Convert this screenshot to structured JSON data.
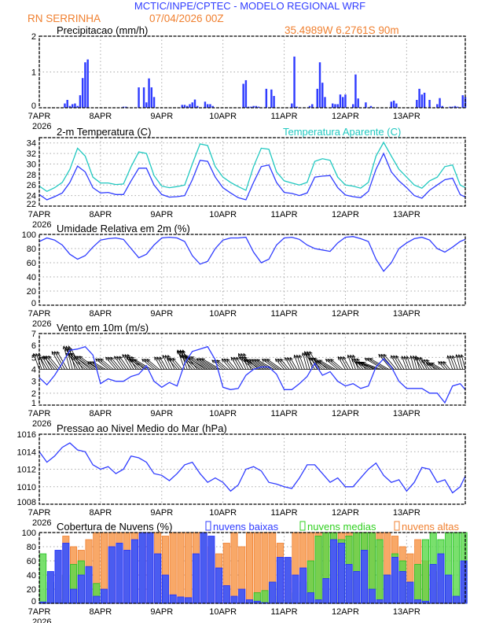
{
  "header": {
    "title": "MCTIC/INPE/CPTEC - MODELO REGIONAL WRF",
    "location": "RN SERRINHA",
    "run": "07/04/2026 00Z",
    "coords": "35.4989W 6.2761S 90m"
  },
  "colors": {
    "title": "#2f3cff",
    "orange": "#f08030",
    "blue": "#2f3cff",
    "cyan": "#20c8c0",
    "green": "#30d020",
    "orange_fill": "#f8a868"
  },
  "x_axis": {
    "labels": [
      "7APR",
      "8APR",
      "9APR",
      "10APR",
      "11APR",
      "12APR",
      "13APR"
    ],
    "year": "2026",
    "hours_total": 167
  },
  "chart_data": [
    {
      "id": "precip",
      "type": "bar",
      "title": "Precipitacao (mm/h)",
      "ylim": [
        0,
        2
      ],
      "yticks": [
        0,
        1,
        2
      ],
      "bars": [
        [
          10,
          0.12
        ],
        [
          11,
          0.22
        ],
        [
          12,
          0.05
        ],
        [
          13,
          0.1
        ],
        [
          14,
          0.12
        ],
        [
          15,
          0.05
        ],
        [
          16,
          0.35
        ],
        [
          17,
          0.83
        ],
        [
          18,
          1.27
        ],
        [
          19,
          1.35
        ],
        [
          33,
          0.03
        ],
        [
          34,
          0.03
        ],
        [
          39,
          0.57
        ],
        [
          41,
          0.57
        ],
        [
          42,
          0.15
        ],
        [
          43,
          0.82
        ],
        [
          44,
          0.57
        ],
        [
          45,
          0.3
        ],
        [
          56,
          0.08
        ],
        [
          57,
          0.08
        ],
        [
          58,
          0.05
        ],
        [
          59,
          0.1
        ],
        [
          60,
          0.15
        ],
        [
          61,
          0.23
        ],
        [
          62,
          0.05
        ],
        [
          65,
          0.17
        ],
        [
          66,
          0.1
        ],
        [
          67,
          0.1
        ],
        [
          68,
          0.05
        ],
        [
          80,
          0.67
        ],
        [
          81,
          0.77
        ],
        [
          82,
          0.03
        ],
        [
          83,
          0.03
        ],
        [
          84,
          0.05
        ],
        [
          85,
          0.05
        ],
        [
          86,
          0.03
        ],
        [
          89,
          0.53
        ],
        [
          91,
          0.51
        ],
        [
          92,
          0.33
        ],
        [
          99,
          0.12
        ],
        [
          100,
          1.43
        ],
        [
          101,
          0.03
        ],
        [
          106,
          0.05
        ],
        [
          107,
          0.1
        ],
        [
          109,
          0.53
        ],
        [
          110,
          1.27
        ],
        [
          111,
          0.7
        ],
        [
          112,
          0.3
        ],
        [
          115,
          0.12
        ],
        [
          116,
          0.1
        ],
        [
          117,
          0.1
        ],
        [
          118,
          0.37
        ],
        [
          119,
          0.3
        ],
        [
          120,
          0.37
        ],
        [
          123,
          0.1
        ],
        [
          124,
          0.93
        ],
        [
          125,
          0.26
        ],
        [
          128,
          0.15
        ],
        [
          130,
          0.05
        ],
        [
          138,
          0.17
        ],
        [
          139,
          0.2
        ],
        [
          140,
          0.12
        ],
        [
          148,
          0.22
        ],
        [
          149,
          0.53
        ],
        [
          150,
          0.37
        ],
        [
          151,
          0.42
        ],
        [
          153,
          0.22
        ],
        [
          156,
          0.1
        ],
        [
          157,
          0.27
        ],
        [
          158,
          0.05
        ],
        [
          161,
          0.03
        ],
        [
          162,
          0.03
        ],
        [
          163,
          0.05
        ],
        [
          164,
          0.03
        ],
        [
          166,
          0.35
        ],
        [
          167,
          0.3
        ]
      ]
    },
    {
      "id": "temp",
      "type": "line",
      "title": "2-m Temperatura (C)",
      "legend2": "Temperatura Aparente (C)",
      "ylim": [
        22,
        35
      ],
      "yticks": [
        22,
        24,
        26,
        28,
        30,
        32,
        34
      ],
      "hours": [
        0,
        3,
        6,
        9,
        12,
        15,
        18,
        21,
        24,
        27,
        30,
        33,
        36,
        39,
        42,
        45,
        48,
        51,
        54,
        57,
        60,
        63,
        66,
        69,
        72,
        75,
        78,
        81,
        84,
        87,
        90,
        93,
        96,
        99,
        102,
        105,
        108,
        111,
        114,
        117,
        120,
        123,
        126,
        129,
        132,
        135,
        138,
        141,
        144,
        147,
        150,
        153,
        156,
        159,
        162,
        165,
        167
      ],
      "series": [
        {
          "name": "2-m Temperatura (C)",
          "values": [
            24.2,
            23.2,
            23.8,
            24.5,
            26.5,
            29.6,
            28.5,
            25.5,
            24.5,
            24.6,
            24.2,
            24.2,
            26.8,
            29.2,
            29.2,
            26,
            24.2,
            23.7,
            23.8,
            24,
            27,
            30.7,
            30.5,
            27.5,
            25.5,
            24.5,
            23.6,
            23.2,
            26.5,
            29.5,
            29.8,
            26.5,
            24.6,
            24.4,
            24,
            24.5,
            27.5,
            27.7,
            27.8,
            25.5,
            24.1,
            23.8,
            23.6,
            24.8,
            29,
            32,
            28.5,
            26.8,
            25.5,
            24,
            23.5,
            25,
            26,
            27,
            27.3,
            24.2,
            23.7
          ]
        },
        {
          "name": "Temperatura Aparente (C)",
          "values": [
            25.8,
            24.8,
            25.5,
            26.5,
            29,
            33,
            31.5,
            27.5,
            26.4,
            26.4,
            26.1,
            26.2,
            29.5,
            32.3,
            32,
            27.8,
            25.8,
            25.5,
            25.7,
            26,
            30,
            33.8,
            33.5,
            29.5,
            27.5,
            26.5,
            25.7,
            25,
            29.5,
            33,
            32.8,
            28.5,
            26.8,
            26.4,
            26,
            26.5,
            30.5,
            31,
            30.7,
            27.5,
            26,
            25.8,
            25.4,
            26.5,
            31.5,
            34.1,
            31.5,
            29,
            27.5,
            26,
            25.4,
            26.8,
            27.5,
            29.5,
            29.8,
            26,
            25.5
          ]
        }
      ]
    },
    {
      "id": "rh",
      "type": "line",
      "title": "Umidade Relativa em 2m (%)",
      "ylim": [
        0,
        100
      ],
      "yticks": [
        0,
        20,
        40,
        60,
        80,
        100
      ],
      "series": [
        {
          "name": "Umidade Relativa",
          "values": [
            90,
            95,
            92,
            85,
            72,
            65,
            70,
            82,
            92,
            94,
            95,
            93,
            80,
            67,
            72,
            85,
            95,
            96,
            95,
            90,
            70,
            58,
            62,
            80,
            92,
            95,
            95,
            96,
            75,
            60,
            65,
            85,
            95,
            96,
            93,
            85,
            80,
            78,
            76,
            88,
            96,
            97,
            94,
            90,
            65,
            48,
            60,
            80,
            88,
            94,
            96,
            92,
            80,
            75,
            82,
            90,
            93
          ]
        }
      ]
    },
    {
      "id": "wind",
      "type": "line",
      "title": "Vento em 10m (m/s)",
      "ylim": [
        1,
        7
      ],
      "yticks": [
        1,
        2,
        3,
        4,
        5,
        6,
        7
      ],
      "series": [
        {
          "name": "Velocidade",
          "values": [
            3.3,
            2.7,
            3.5,
            4.5,
            5.6,
            5.7,
            5.9,
            5.2,
            2.8,
            3.2,
            3.0,
            3.0,
            3.4,
            3.6,
            4.3,
            3.0,
            2.5,
            2.9,
            2.6,
            4.5,
            5.5,
            5.7,
            5.9,
            4.8,
            2.5,
            2.3,
            2.4,
            3.5,
            4.0,
            4.2,
            4.2,
            3.6,
            2.3,
            2.3,
            2.8,
            3.4,
            4.5,
            3.5,
            3.8,
            3.0,
            2.6,
            2.8,
            2.4,
            2.6,
            4.2,
            4.9,
            4.2,
            3.0,
            2.4,
            2.4,
            2.4,
            2.0,
            2.0,
            1.2,
            2.6,
            2.8,
            2.3
          ]
        }
      ],
      "arrow_direction_deg": [
        340,
        330,
        320,
        330,
        345,
        330,
        310,
        305,
        300,
        310,
        320,
        325,
        330,
        315,
        300,
        310,
        330,
        335,
        320,
        340,
        320,
        305,
        300,
        300,
        310,
        320,
        330,
        335,
        310,
        300,
        300,
        305,
        320,
        330,
        340,
        345,
        330,
        310,
        300,
        310,
        330,
        340,
        320,
        300,
        290,
        300,
        320,
        330,
        340,
        345,
        330,
        320,
        300,
        320,
        340,
        345
      ],
      "arrow_baseline": 4
    },
    {
      "id": "pres",
      "type": "line",
      "title": "Pressao ao Nivel Medio do Mar (hPa)",
      "ylim": [
        1008,
        1016
      ],
      "yticks": [
        1008,
        1010,
        1012,
        1014,
        1016
      ],
      "series": [
        {
          "name": "Pressao",
          "values": [
            1014,
            1012.8,
            1013.5,
            1014.5,
            1015,
            1014.2,
            1014,
            1012.5,
            1012,
            1012.3,
            1011.5,
            1012,
            1013.5,
            1013.3,
            1012.8,
            1011.5,
            1011.3,
            1010.7,
            1011.5,
            1012.5,
            1012.8,
            1011.5,
            1010.5,
            1011,
            1010.5,
            1009.5,
            1010.2,
            1012,
            1012.3,
            1011.8,
            1010.5,
            1010.3,
            1010,
            1009.8,
            1011,
            1012.5,
            1012.5,
            1011.5,
            1010.5,
            1011,
            1010,
            1010,
            1011,
            1012,
            1012.7,
            1011.3,
            1010.5,
            1010.8,
            1009.5,
            1010.5,
            1012.2,
            1012,
            1010.5,
            1010.8,
            1009.3,
            1010,
            1011.2
          ]
        }
      ]
    },
    {
      "id": "cloud",
      "type": "bar",
      "title": "Cobertura de Nuvens (%)",
      "ylim": [
        0,
        100
      ],
      "yticks": [
        0,
        20,
        40,
        60,
        80,
        100
      ],
      "step_hours": 3,
      "series": [
        {
          "name": "nuvens altas",
          "values": [
            0,
            0,
            40,
            95,
            80,
            75,
            90,
            100,
            100,
            100,
            100,
            100,
            100,
            100,
            100,
            100,
            95,
            100,
            100,
            100,
            100,
            100,
            80,
            70,
            85,
            100,
            80,
            100,
            100,
            100,
            100,
            85,
            60,
            100,
            100,
            100,
            100,
            100,
            100,
            100,
            100,
            100,
            100,
            100,
            100,
            100,
            95,
            80,
            70,
            90,
            60,
            45,
            30,
            10,
            0,
            0
          ]
        },
        {
          "name": "nuvens medias",
          "values": [
            70,
            30,
            5,
            40,
            55,
            60,
            10,
            28,
            0,
            0,
            0,
            0,
            0,
            0,
            0,
            0,
            5,
            0,
            0,
            0,
            0,
            0,
            0,
            0,
            0,
            0,
            0,
            0,
            15,
            18,
            30,
            10,
            5,
            15,
            30,
            60,
            95,
            100,
            100,
            90,
            95,
            100,
            100,
            100,
            90,
            40,
            70,
            60,
            30,
            55,
            90,
            100,
            90,
            100,
            100,
            100
          ]
        },
        {
          "name": "nuvens baixas",
          "values": [
            2,
            45,
            75,
            85,
            20,
            40,
            52,
            10,
            20,
            80,
            85,
            75,
            90,
            100,
            100,
            70,
            40,
            12,
            9,
            8,
            70,
            100,
            95,
            50,
            25,
            10,
            20,
            5,
            3,
            1,
            30,
            65,
            65,
            40,
            50,
            15,
            5,
            35,
            90,
            85,
            55,
            45,
            75,
            20,
            5,
            40,
            65,
            45,
            30,
            5,
            3,
            55,
            70,
            40,
            10,
            60
          ]
        }
      ]
    }
  ]
}
